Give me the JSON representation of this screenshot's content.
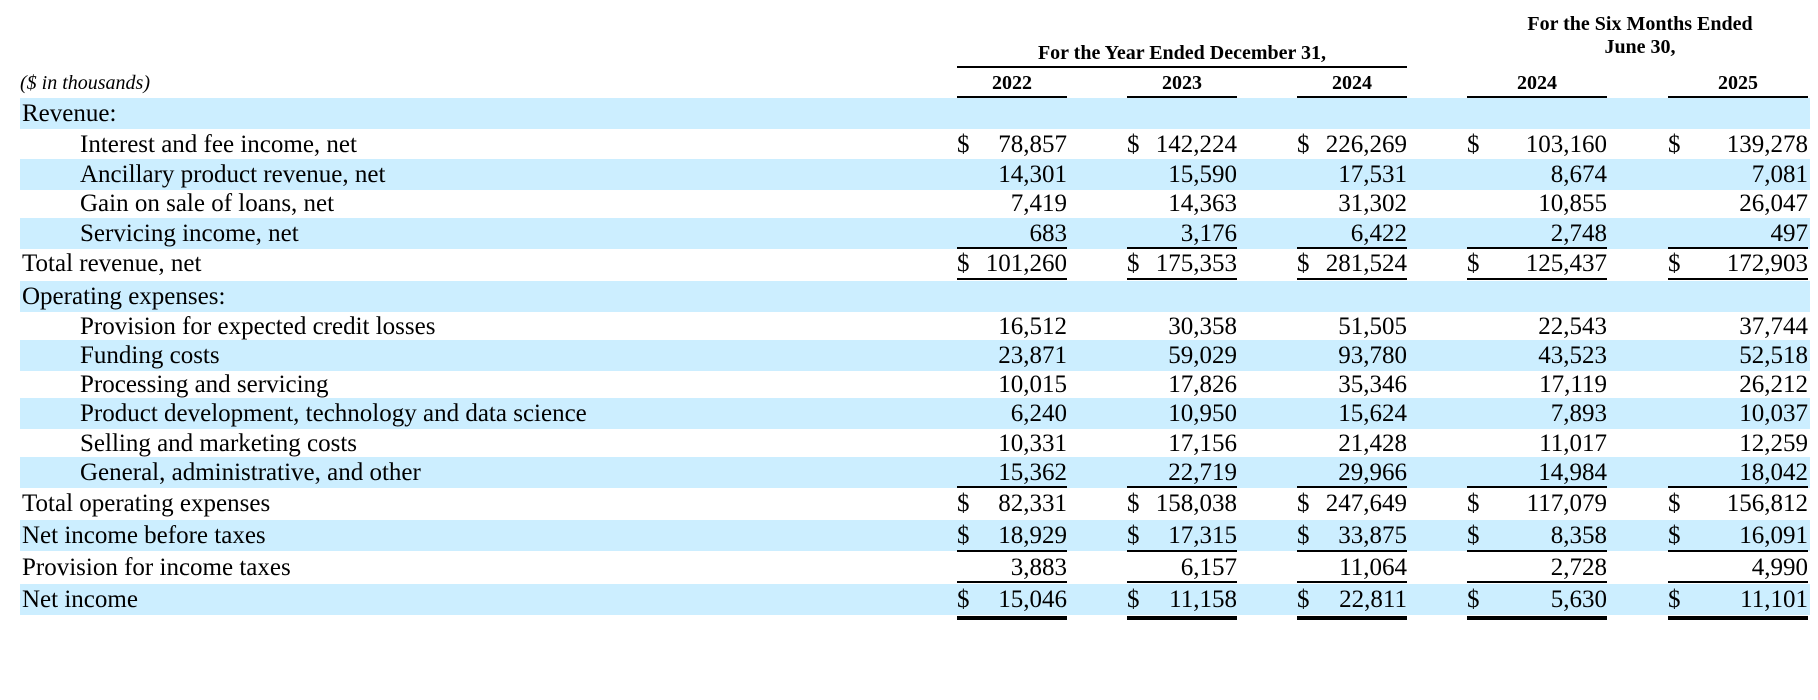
{
  "header": {
    "unit_note": "($ in thousands)",
    "year_group": "For the Year Ended December 31,",
    "six_month_group_line1": "For the Six Months Ended",
    "six_month_group_line2": "June 30,",
    "columns": [
      "2022",
      "2023",
      "2024",
      "2024",
      "2025"
    ]
  },
  "rows": [
    {
      "label": "Revenue:",
      "indent": false,
      "shaded": true,
      "values": null
    },
    {
      "label": "Interest and fee income, net",
      "indent": true,
      "shaded": false,
      "dollar": true,
      "values": [
        "78,857",
        "142,224",
        "226,269",
        "103,160",
        "139,278"
      ]
    },
    {
      "label": "Ancillary product revenue, net",
      "indent": true,
      "shaded": true,
      "dollar": false,
      "values": [
        "14,301",
        "15,590",
        "17,531",
        "8,674",
        "7,081"
      ]
    },
    {
      "label": "Gain on sale of loans, net",
      "indent": true,
      "shaded": false,
      "dollar": false,
      "values": [
        "7,419",
        "14,363",
        "31,302",
        "10,855",
        "26,047"
      ]
    },
    {
      "label": "Servicing income, net",
      "indent": true,
      "shaded": true,
      "dollar": false,
      "values": [
        "683",
        "3,176",
        "6,422",
        "2,748",
        "497"
      ]
    },
    {
      "label": "Total revenue, net",
      "indent": false,
      "shaded": false,
      "dollar": true,
      "values": [
        "101,260",
        "175,353",
        "281,524",
        "125,437",
        "172,903"
      ]
    },
    {
      "label": "Operating expenses:",
      "indent": false,
      "shaded": true,
      "values": null
    },
    {
      "label": "Provision for expected credit losses",
      "indent": true,
      "shaded": false,
      "dollar": false,
      "values": [
        "16,512",
        "30,358",
        "51,505",
        "22,543",
        "37,744"
      ]
    },
    {
      "label": "Funding costs",
      "indent": true,
      "shaded": true,
      "dollar": false,
      "values": [
        "23,871",
        "59,029",
        "93,780",
        "43,523",
        "52,518"
      ]
    },
    {
      "label": "Processing and servicing",
      "indent": true,
      "shaded": false,
      "dollar": false,
      "values": [
        "10,015",
        "17,826",
        "35,346",
        "17,119",
        "26,212"
      ]
    },
    {
      "label": "Product development, technology and data science",
      "indent": true,
      "shaded": true,
      "dollar": false,
      "values": [
        "6,240",
        "10,950",
        "15,624",
        "7,893",
        "10,037"
      ]
    },
    {
      "label": "Selling and marketing costs",
      "indent": true,
      "shaded": false,
      "dollar": false,
      "values": [
        "10,331",
        "17,156",
        "21,428",
        "11,017",
        "12,259"
      ]
    },
    {
      "label": "General, administrative, and other",
      "indent": true,
      "shaded": true,
      "dollar": false,
      "values": [
        "15,362",
        "22,719",
        "29,966",
        "14,984",
        "18,042"
      ]
    },
    {
      "label": "Total operating expenses",
      "indent": false,
      "shaded": false,
      "dollar": true,
      "values": [
        "82,331",
        "158,038",
        "247,649",
        "117,079",
        "156,812"
      ]
    },
    {
      "label": "Net income before taxes",
      "indent": false,
      "shaded": true,
      "dollar": true,
      "values": [
        "18,929",
        "17,315",
        "33,875",
        "8,358",
        "16,091"
      ]
    },
    {
      "label": "Provision for income taxes",
      "indent": false,
      "shaded": false,
      "dollar": false,
      "values": [
        "3,883",
        "6,157",
        "11,064",
        "2,728",
        "4,990"
      ]
    },
    {
      "label": "Net income",
      "indent": false,
      "shaded": true,
      "dollar": true,
      "values": [
        "15,046",
        "11,158",
        "22,811",
        "5,630",
        "11,101"
      ]
    }
  ],
  "dollar_sign": "$"
}
